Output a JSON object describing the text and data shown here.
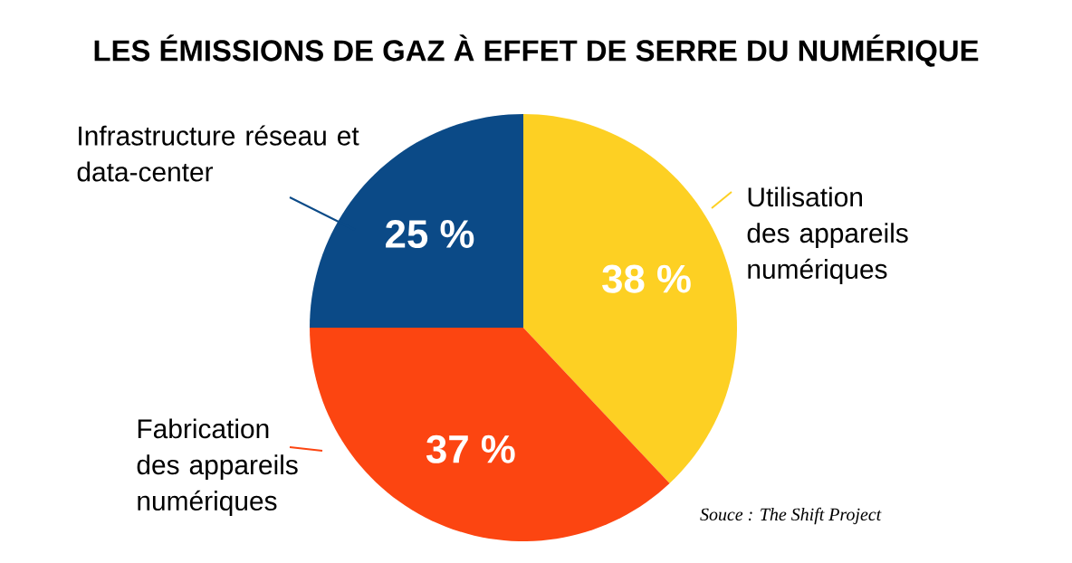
{
  "chart_data": {
    "type": "pie",
    "title": "LES ÉMISSIONS DE GAZ À EFFET DE SERRE DU NUMÉRIQUE",
    "categories": [
      "Utilisation des appareils numériques",
      "Fabrication des appareils numériques",
      "Infrastructure réseau et data-center"
    ],
    "values": [
      38,
      37,
      25
    ],
    "colors": [
      "#fdd023",
      "#fc4511",
      "#0b4a87"
    ],
    "value_labels": [
      "38 %",
      "37 %",
      "25 %"
    ],
    "annotations": [
      "Souce : The Shift Project"
    ]
  }
}
